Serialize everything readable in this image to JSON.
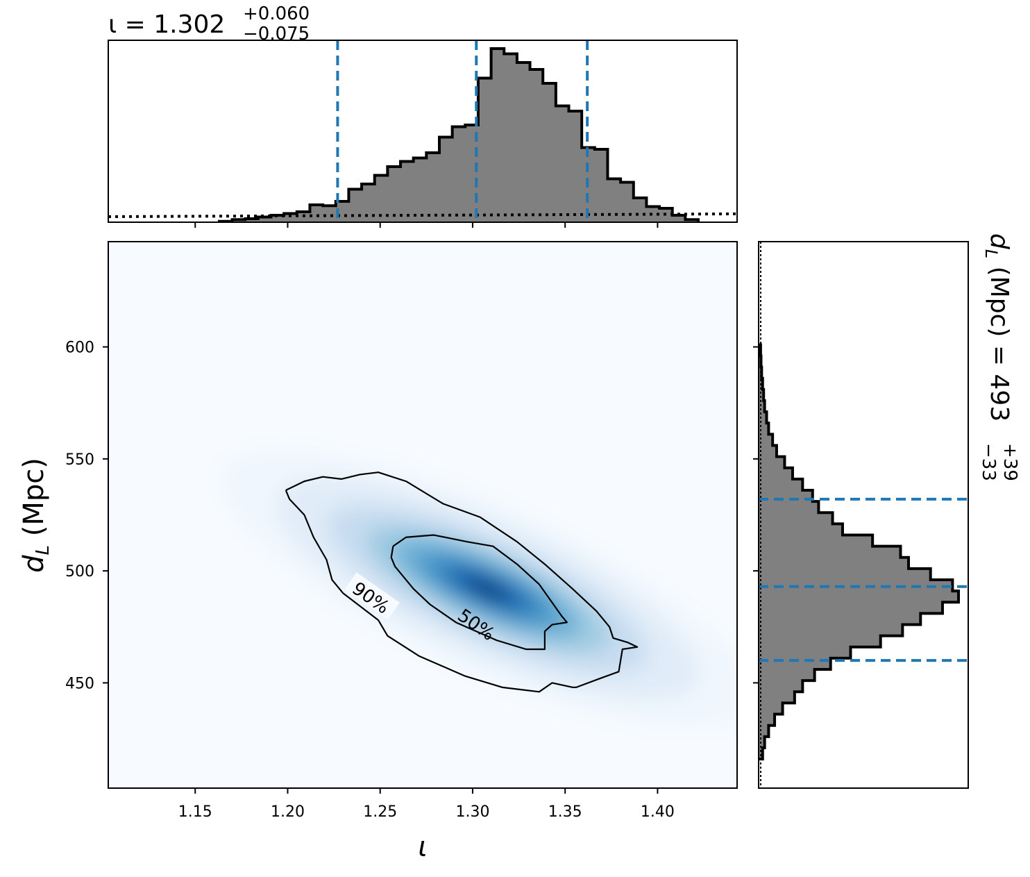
{
  "chart_data": [
    {
      "type": "histogram",
      "panel": "top-marginal",
      "variable": "ι",
      "title": {
        "param": "ι",
        "median": "1.302",
        "plus": "+0.060",
        "minus": "−0.075"
      },
      "xlim": [
        1.103,
        1.443
      ],
      "xticks": [
        1.15,
        1.2,
        1.25,
        1.3,
        1.35,
        1.4
      ],
      "bin_edges": [
        1.163,
        1.17,
        1.177,
        1.184,
        1.191,
        1.198,
        1.205,
        1.212,
        1.219,
        1.226,
        1.233,
        1.24,
        1.247,
        1.254,
        1.261,
        1.268,
        1.275,
        1.282,
        1.289,
        1.296,
        1.303,
        1.31,
        1.317,
        1.324,
        1.331,
        1.338,
        1.345,
        1.352,
        1.359,
        1.366,
        1.373,
        1.38,
        1.387,
        1.394,
        1.401,
        1.408,
        1.415,
        1.422
      ],
      "counts": [
        0.005,
        0.015,
        0.02,
        0.03,
        0.04,
        0.05,
        0.06,
        0.1,
        0.095,
        0.12,
        0.19,
        0.22,
        0.27,
        0.32,
        0.35,
        0.37,
        0.4,
        0.49,
        0.55,
        0.56,
        0.83,
        1.0,
        0.97,
        0.92,
        0.88,
        0.8,
        0.67,
        0.64,
        0.43,
        0.42,
        0.25,
        0.23,
        0.14,
        0.09,
        0.08,
        0.04,
        0.015
      ],
      "prior_level": 0.04,
      "quantile_lines": [
        1.227,
        1.302,
        1.362
      ],
      "hist_color": "#808080",
      "line_color": "#1f77b4"
    },
    {
      "type": "heatmap",
      "panel": "joint",
      "colormap": "Blues",
      "xlabel": "ι",
      "ylabel": "d_L (Mpc)",
      "xlim": [
        1.103,
        1.443
      ],
      "ylim": [
        403,
        647
      ],
      "xticks": [
        1.15,
        1.2,
        1.25,
        1.3,
        1.35,
        1.4
      ],
      "yticks": [
        450,
        500,
        550,
        600
      ],
      "center": [
        1.308,
        492
      ],
      "contours": [
        {
          "label": "90%",
          "points": [
            [
              1.199,
              536
            ],
            [
              1.209,
              540
            ],
            [
              1.219,
              542
            ],
            [
              1.229,
              541
            ],
            [
              1.239,
              543
            ],
            [
              1.249,
              544
            ],
            [
              1.264,
              540
            ],
            [
              1.284,
              530
            ],
            [
              1.304,
              524
            ],
            [
              1.324,
              513
            ],
            [
              1.339,
              503
            ],
            [
              1.354,
              492
            ],
            [
              1.367,
              482
            ],
            [
              1.374,
              475
            ],
            [
              1.376,
              470
            ],
            [
              1.384,
              468
            ],
            [
              1.389,
              466
            ],
            [
              1.381,
              465
            ],
            [
              1.379,
              455
            ],
            [
              1.369,
              452
            ],
            [
              1.356,
              448
            ],
            [
              1.354,
              448
            ],
            [
              1.343,
              450
            ],
            [
              1.336,
              446
            ],
            [
              1.316,
              448
            ],
            [
              1.296,
              453
            ],
            [
              1.271,
              462
            ],
            [
              1.254,
              471
            ],
            [
              1.249,
              478
            ],
            [
              1.23,
              490
            ],
            [
              1.224,
              496
            ],
            [
              1.221,
              505
            ],
            [
              1.214,
              515
            ],
            [
              1.209,
              525
            ],
            [
              1.201,
              532
            ],
            [
              1.199,
              536
            ]
          ],
          "label_at": [
            1.245,
            488
          ]
        },
        {
          "label": "50%",
          "points": [
            [
              1.257,
              511
            ],
            [
              1.264,
              515
            ],
            [
              1.279,
              516
            ],
            [
              1.297,
              513
            ],
            [
              1.311,
              511
            ],
            [
              1.324,
              503
            ],
            [
              1.336,
              494
            ],
            [
              1.348,
              480
            ],
            [
              1.351,
              477
            ],
            [
              1.343,
              476
            ],
            [
              1.339,
              473
            ],
            [
              1.339,
              465
            ],
            [
              1.329,
              465
            ],
            [
              1.313,
              469
            ],
            [
              1.291,
              477
            ],
            [
              1.277,
              485
            ],
            [
              1.268,
              492
            ],
            [
              1.258,
              502
            ],
            [
              1.256,
              506
            ],
            [
              1.257,
              511
            ]
          ],
          "label_at": [
            1.302,
            476
          ]
        }
      ]
    },
    {
      "type": "histogram",
      "panel": "right-marginal",
      "orientation": "horizontal",
      "variable": "d_L (Mpc)",
      "title": {
        "param": "d_L (Mpc)",
        "median": "493",
        "plus": "+39",
        "minus": "−33"
      },
      "ylim": [
        403,
        647
      ],
      "yticks": [
        450,
        500,
        550,
        600
      ],
      "bin_edges": [
        416,
        421,
        426,
        431,
        436,
        441,
        446,
        451,
        456,
        461,
        466,
        471,
        476,
        481,
        486,
        491,
        496,
        501,
        506,
        511,
        516,
        521,
        526,
        531,
        536,
        541,
        546,
        551,
        556,
        561,
        566,
        571,
        576,
        581,
        586,
        591,
        596,
        601
      ],
      "counts": [
        0.02,
        0.03,
        0.05,
        0.08,
        0.12,
        0.18,
        0.22,
        0.28,
        0.36,
        0.46,
        0.61,
        0.72,
        0.81,
        0.92,
        1.0,
        0.97,
        0.86,
        0.75,
        0.71,
        0.57,
        0.42,
        0.37,
        0.3,
        0.27,
        0.22,
        0.17,
        0.13,
        0.09,
        0.07,
        0.05,
        0.04,
        0.03,
        0.025,
        0.02,
        0.015,
        0.012,
        0.01
      ],
      "quantile_lines": [
        460,
        493,
        532
      ],
      "hist_color": "#808080",
      "line_color": "#1f77b4"
    }
  ]
}
